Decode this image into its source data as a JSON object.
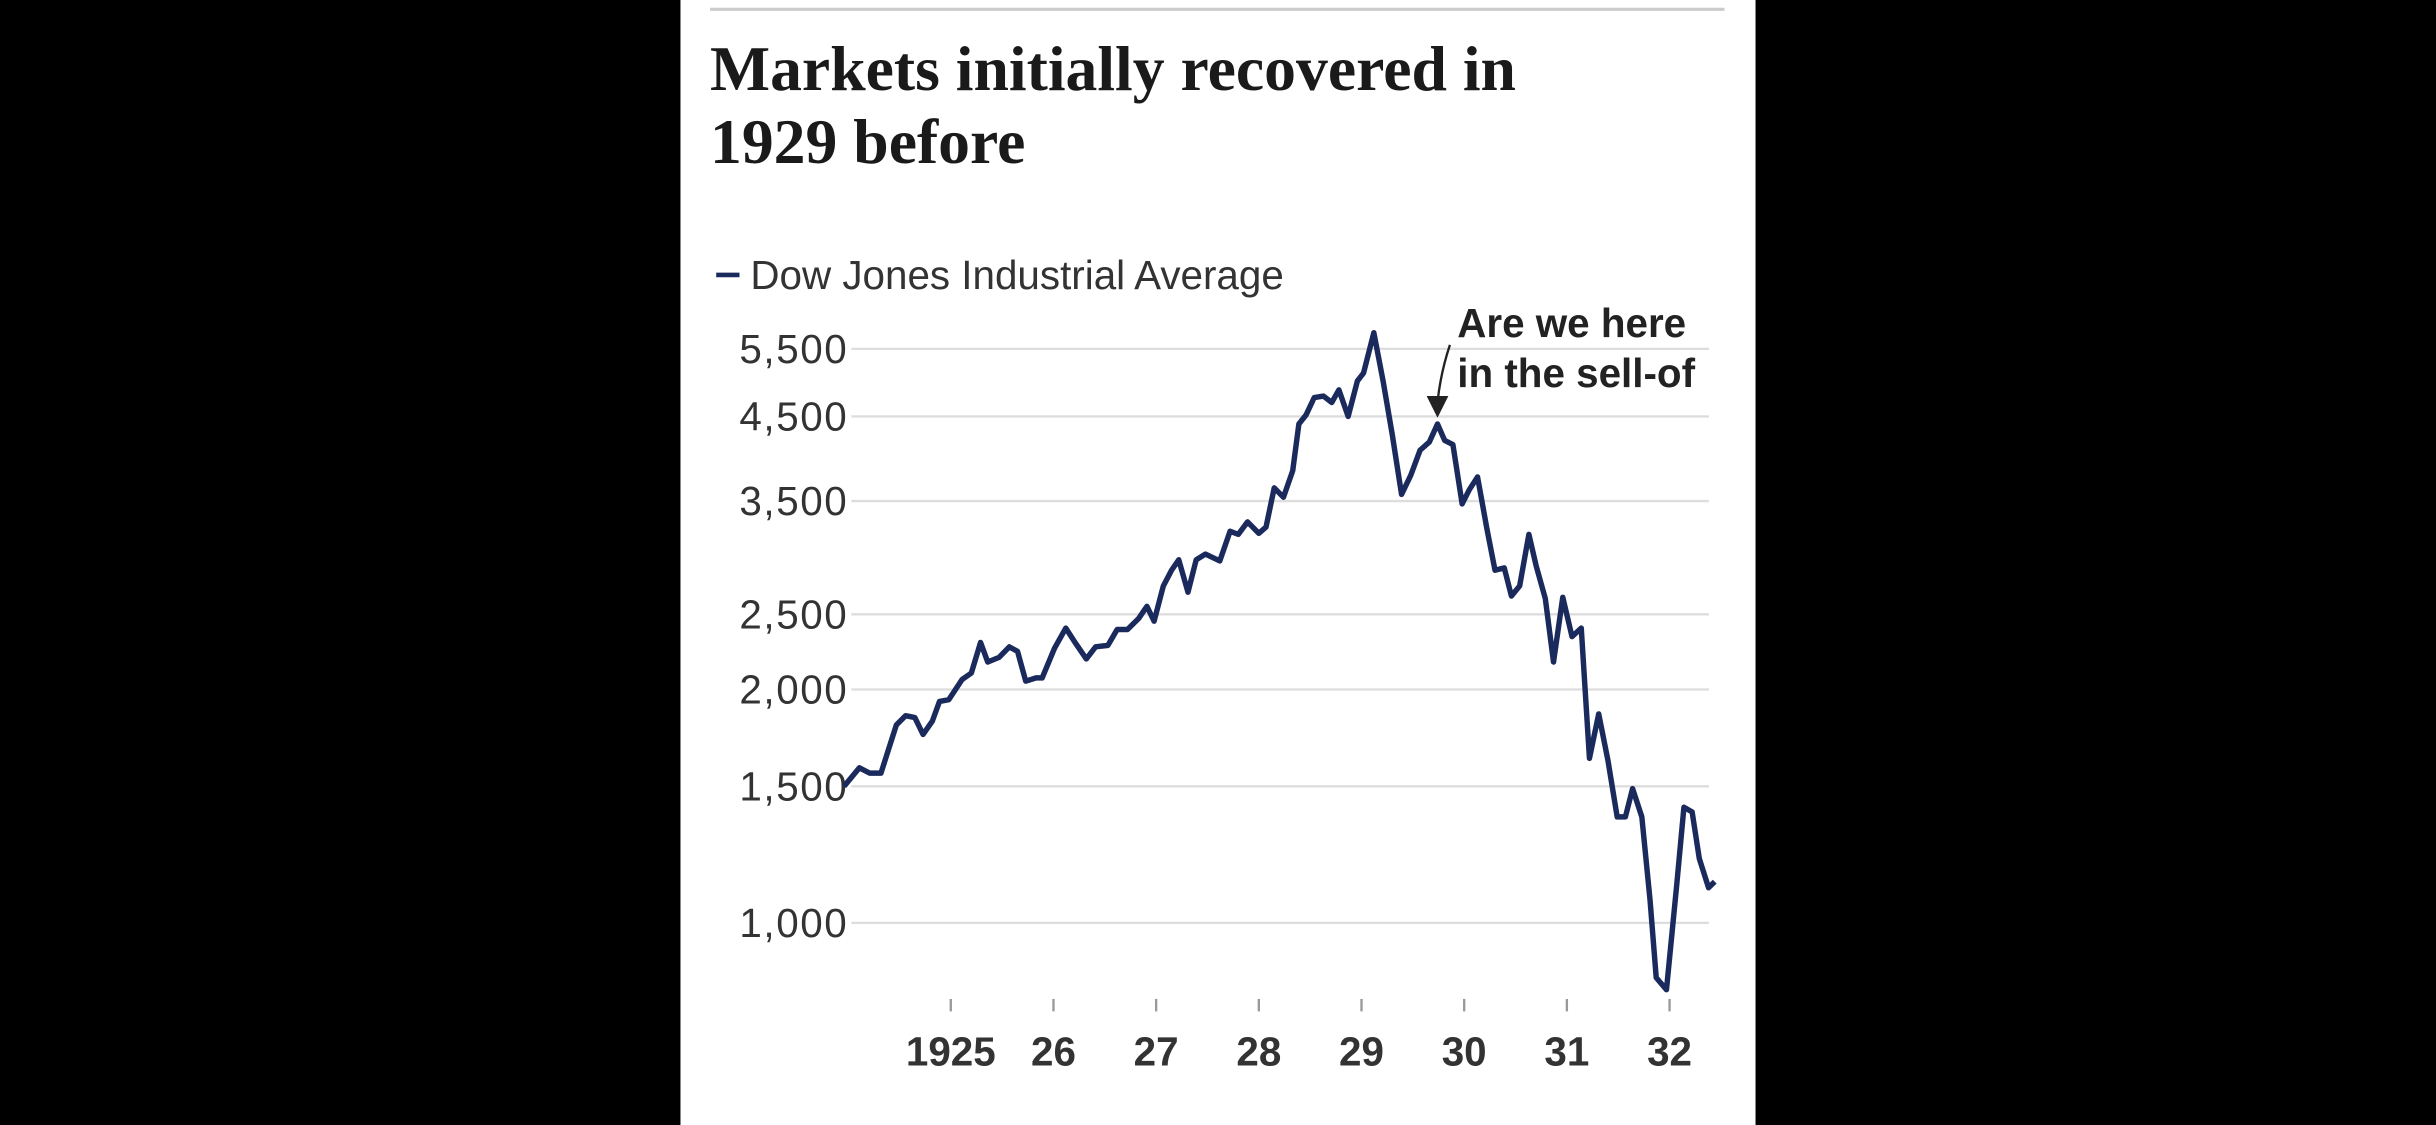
{
  "chart_data": {
    "type": "line",
    "title": "Markets initially recovered in 1929 before",
    "log_scale_y": true,
    "grid": true,
    "annotation": [
      "Are we here",
      "in the sell-of"
    ],
    "annotation_x": 1929.74,
    "annotation_y": 4400,
    "xlim": [
      1923.95,
      1932.45
    ],
    "xticks": [
      1925,
      {
        "value": 1926,
        "label": "26"
      },
      {
        "value": 1927,
        "label": "27"
      },
      {
        "value": 1928,
        "label": "28"
      },
      {
        "value": 1929,
        "label": "29"
      },
      {
        "value": 1930,
        "label": "30"
      },
      {
        "value": 1931,
        "label": "31"
      },
      {
        "value": 1932,
        "label": "32"
      }
    ],
    "ylim": [
      800,
      6000
    ],
    "yticks": [
      {
        "value": 1000,
        "label": "1,000"
      },
      {
        "value": 1500,
        "label": "1,500"
      },
      {
        "value": 2000,
        "label": "2,000"
      },
      {
        "value": 2500,
        "label": "2,500"
      },
      {
        "value": 3500,
        "label": "3,500"
      },
      {
        "value": 4500,
        "label": "4,500"
      },
      {
        "value": 5500,
        "label": "5,500"
      }
    ],
    "x": [
      1923.96,
      1924.11,
      1924.21,
      1924.32,
      1924.47,
      1924.56,
      1924.65,
      1924.73,
      1924.82,
      1924.89,
      1924.98,
      1925.11,
      1925.2,
      1925.29,
      1925.36,
      1925.47,
      1925.57,
      1925.65,
      1925.73,
      1925.83,
      1925.89,
      1926.01,
      1926.12,
      1926.21,
      1926.32,
      1926.41,
      1926.53,
      1926.62,
      1926.72,
      1926.83,
      1926.91,
      1926.98,
      1927.07,
      1927.15,
      1927.22,
      1927.31,
      1927.39,
      1927.48,
      1927.62,
      1927.72,
      1927.8,
      1927.89,
      1928.0,
      1928.07,
      1928.15,
      1928.24,
      1928.33,
      1928.39,
      1928.46,
      1928.54,
      1928.63,
      1928.71,
      1928.78,
      1928.87,
      1928.96,
      1929.02,
      1929.12,
      1929.21,
      1929.3,
      1929.39,
      1929.48,
      1929.57,
      1929.66,
      1929.74,
      1929.81,
      1929.89,
      1929.98,
      1930.05,
      1930.13,
      1930.22,
      1930.3,
      1930.39,
      1930.46,
      1930.54,
      1930.63,
      1930.7,
      1930.79,
      1930.87,
      1930.96,
      1931.05,
      1931.14,
      1931.22,
      1931.31,
      1931.4,
      1931.49,
      1931.57,
      1931.64,
      1931.73,
      1931.81,
      1931.87,
      1931.97,
      1932.07,
      1932.14,
      1932.22,
      1932.29,
      1932.38,
      1932.44
    ],
    "series": [
      {
        "name": "Dow Jones Industrial Average",
        "color": "#1b2a5c",
        "values": [
          1500,
          1585,
          1560,
          1560,
          1800,
          1850,
          1840,
          1750,
          1820,
          1930,
          1940,
          2060,
          2100,
          2300,
          2170,
          2200,
          2270,
          2240,
          2050,
          2070,
          2070,
          2260,
          2400,
          2300,
          2190,
          2270,
          2280,
          2390,
          2390,
          2470,
          2560,
          2450,
          2720,
          2850,
          2940,
          2670,
          2940,
          2990,
          2930,
          3200,
          3170,
          3290,
          3180,
          3240,
          3640,
          3540,
          3830,
          4400,
          4520,
          4760,
          4780,
          4690,
          4870,
          4500,
          5000,
          5120,
          5770,
          5000,
          4260,
          3570,
          3780,
          4070,
          4170,
          4400,
          4190,
          4140,
          3470,
          3620,
          3760,
          3230,
          2850,
          2870,
          2640,
          2720,
          3170,
          2890,
          2620,
          2170,
          2630,
          2340,
          2400,
          1630,
          1860,
          1620,
          1370,
          1370,
          1490,
          1370,
          1070,
          850,
          820,
          1120,
          1410,
          1390,
          1210,
          1110,
          1130
        ]
      }
    ]
  }
}
